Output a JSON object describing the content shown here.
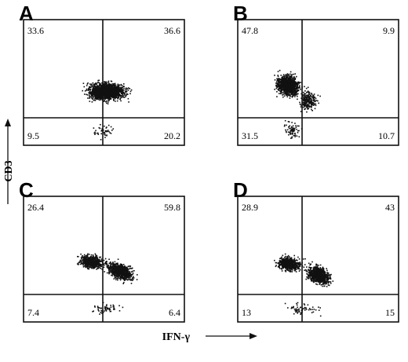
{
  "chart_data": [
    {
      "type": "scatter",
      "panel": "A",
      "quadrant_percentages": {
        "upper_left": "33.6",
        "upper_right": "36.6",
        "lower_left": "9.5",
        "lower_right": "20.2"
      }
    },
    {
      "type": "scatter",
      "panel": "B",
      "quadrant_percentages": {
        "upper_left": "47.8",
        "upper_right": "9.9",
        "lower_left": "31.5",
        "lower_right": "10.7"
      }
    },
    {
      "type": "scatter",
      "panel": "C",
      "quadrant_percentages": {
        "upper_left": "26.4",
        "upper_right": "59.8",
        "lower_left": "7.4",
        "lower_right": "6.4"
      }
    },
    {
      "type": "scatter",
      "panel": "D",
      "quadrant_percentages": {
        "upper_left": "28.9",
        "upper_right": "43",
        "lower_left": "13",
        "lower_right": "15"
      }
    }
  ],
  "axes": {
    "xlabel": "IFN-γ",
    "ylabel": "CD3"
  },
  "colors": {
    "ink": "#111111",
    "background": "#ffffff"
  }
}
